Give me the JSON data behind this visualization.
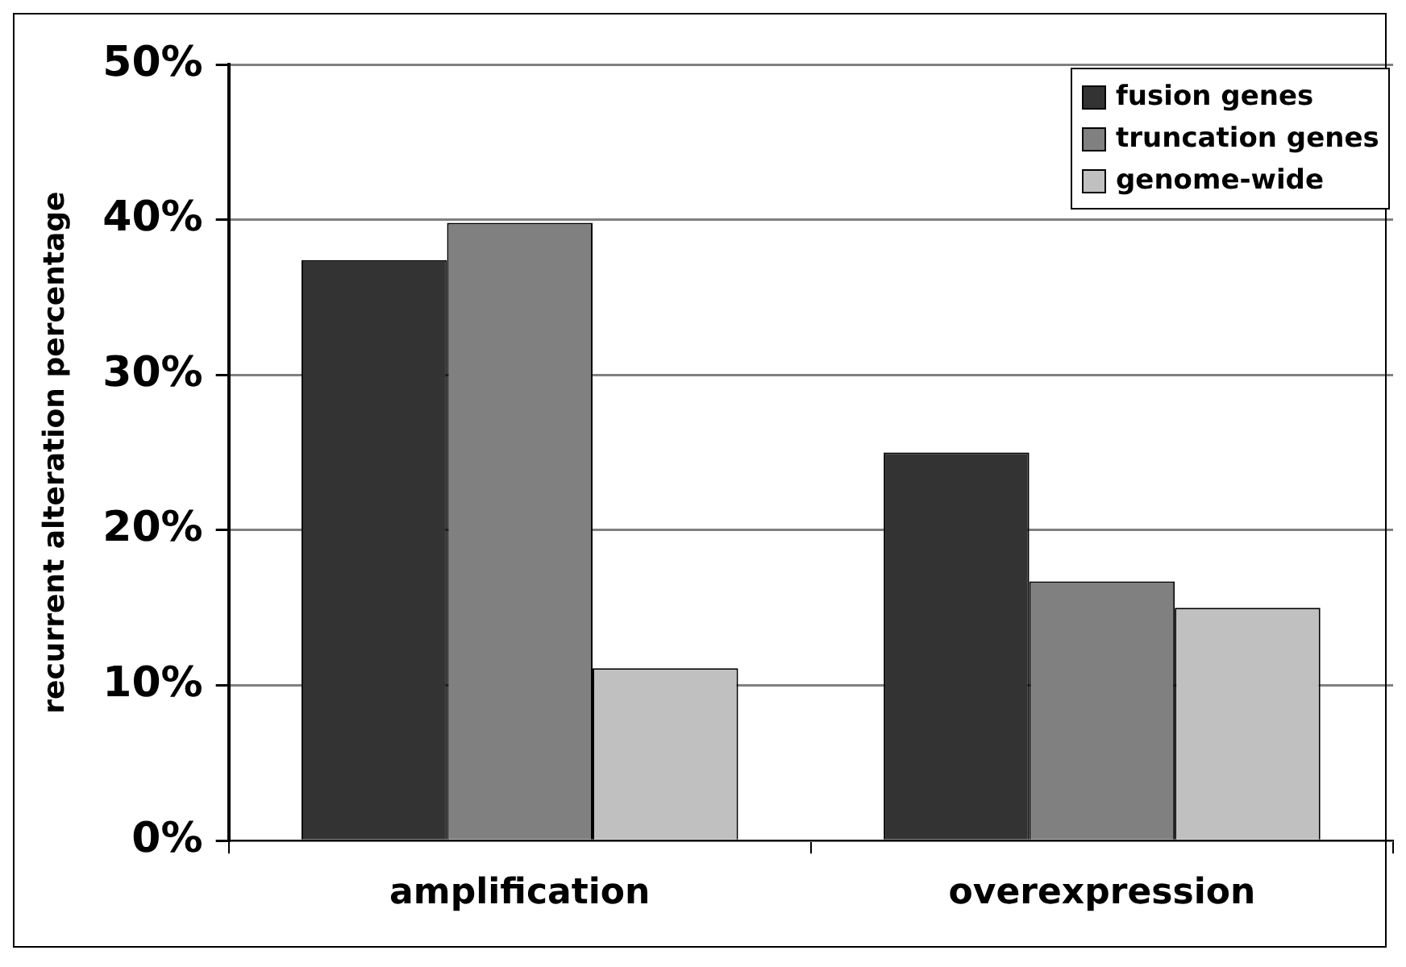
{
  "chart_data": {
    "type": "bar",
    "ylabel": "recurrent alteration percentage",
    "categories": [
      "amplification",
      "overexpression"
    ],
    "series": [
      {
        "name": "fusion genes",
        "color": "#333333",
        "values": [
          37.4,
          25.0
        ]
      },
      {
        "name": "truncation genes",
        "color": "#808080",
        "values": [
          39.8,
          16.7
        ]
      },
      {
        "name": "genome-wide",
        "color": "#c0c0c0",
        "values": [
          11.1,
          15.0
        ]
      }
    ],
    "ylim": [
      0,
      50
    ],
    "yticks": [
      {
        "value": 0,
        "label": "0%"
      },
      {
        "value": 10,
        "label": "10%"
      },
      {
        "value": 20,
        "label": "20%"
      },
      {
        "value": 30,
        "label": "30%"
      },
      {
        "value": 40,
        "label": "40%"
      },
      {
        "value": 50,
        "label": "50%"
      }
    ],
    "grid": "y",
    "legend": "top right"
  }
}
